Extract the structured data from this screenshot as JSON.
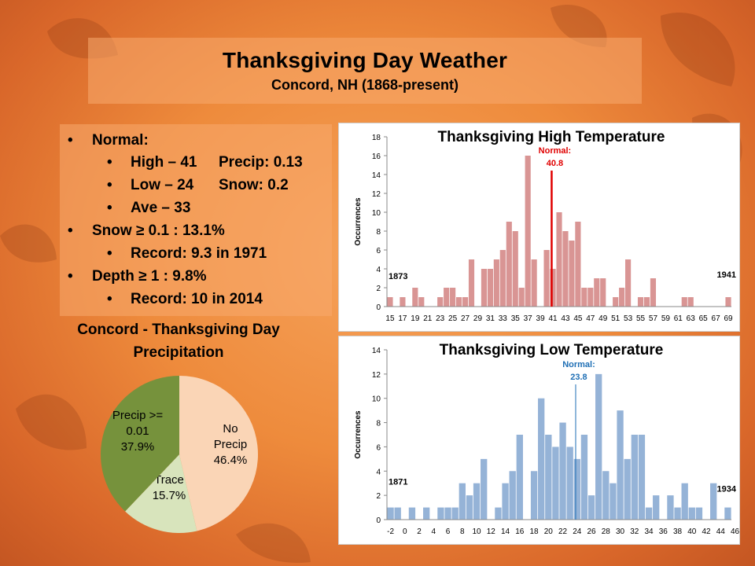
{
  "title": "Thanksgiving Day Weather",
  "subtitle": "Concord, NH (1868-present)",
  "bullets": {
    "normal": "Normal:",
    "high": "High – 41",
    "precip": "Precip: 0.13",
    "low": "Low – 24",
    "snow": "Snow: 0.2",
    "ave": "Ave – 33",
    "snow_freq": "Snow ≥ 0.1 : 13.1%",
    "snow_record": "Record: 9.3 in 1971",
    "depth_freq": "Depth ≥ 1 : 9.8%",
    "depth_record": "Record: 10 in 2014",
    "bullet_glyph": "•"
  },
  "colors": {
    "high_bar": "#d99594",
    "high_normal": "#e00000",
    "low_bar": "#95b3d7",
    "low_normal": "#1f6fb5",
    "pie_no_precip": "#fad5b6",
    "pie_trace": "#d8e4bc",
    "pie_precip": "#76923c"
  },
  "chart_data": [
    {
      "type": "bar",
      "title": "Thanksgiving High Temperature",
      "ylabel": "Occurrences",
      "xlabel": "",
      "ylim": [
        0,
        18
      ],
      "yticks": [
        0,
        2,
        4,
        6,
        8,
        10,
        12,
        14,
        16,
        18
      ],
      "x_start": 15,
      "x_end": 70,
      "tick_labels": [
        "15",
        "17",
        "19",
        "21",
        "23",
        "25",
        "27",
        "29",
        "31",
        "33",
        "35",
        "37",
        "39",
        "41",
        "43",
        "45",
        "47",
        "49",
        "51",
        "53",
        "55",
        "57",
        "59",
        "61",
        "63",
        "65",
        "67",
        "69"
      ],
      "values": [
        1,
        0,
        1,
        0,
        2,
        1,
        0,
        0,
        1,
        2,
        2,
        1,
        1,
        5,
        0,
        4,
        4,
        5,
        6,
        9,
        8,
        2,
        16,
        5,
        0,
        6,
        4,
        10,
        8,
        7,
        9,
        2,
        2,
        3,
        3,
        0,
        1,
        2,
        5,
        0,
        1,
        1,
        3,
        0,
        0,
        0,
        0,
        1,
        1,
        0,
        0,
        0,
        0,
        0,
        1
      ],
      "normal_label": "Normal:",
      "normal_value": 40.8,
      "normal_text": "40.8",
      "left_annotation": "1873",
      "right_annotation": "1941"
    },
    {
      "type": "bar",
      "title": "Thanksgiving Low Temperature",
      "ylabel": "Occurrences",
      "xlabel": "",
      "ylim": [
        0,
        14
      ],
      "yticks": [
        0,
        2,
        4,
        6,
        8,
        10,
        12,
        14
      ],
      "x_start": -2,
      "x_end": 47,
      "tick_labels": [
        "-2",
        "0",
        "2",
        "4",
        "6",
        "8",
        "10",
        "12",
        "14",
        "16",
        "18",
        "20",
        "22",
        "24",
        "26",
        "28",
        "30",
        "32",
        "34",
        "36",
        "38",
        "40",
        "42",
        "44",
        "46"
      ],
      "values": [
        1,
        1,
        0,
        1,
        0,
        1,
        0,
        1,
        1,
        1,
        3,
        2,
        3,
        5,
        0,
        1,
        3,
        4,
        7,
        0,
        4,
        10,
        7,
        6,
        8,
        6,
        5,
        7,
        2,
        12,
        4,
        3,
        9,
        5,
        7,
        7,
        1,
        2,
        0,
        2,
        1,
        3,
        1,
        1,
        0,
        3,
        0,
        1
      ],
      "normal_label": "Normal:",
      "normal_value": 23.8,
      "normal_text": "23.8",
      "left_annotation": "1871",
      "right_annotation": "1934"
    },
    {
      "type": "pie",
      "title": "Concord - Thanksgiving Day Precipitation",
      "slices": [
        {
          "label": [
            "No",
            "Precip",
            "46.4%"
          ],
          "value": 46.4
        },
        {
          "label": [
            "Trace",
            "15.7%"
          ],
          "value": 15.7
        },
        {
          "label": [
            "Precip >=",
            "0.01",
            "37.9%"
          ],
          "value": 37.9
        }
      ]
    }
  ]
}
